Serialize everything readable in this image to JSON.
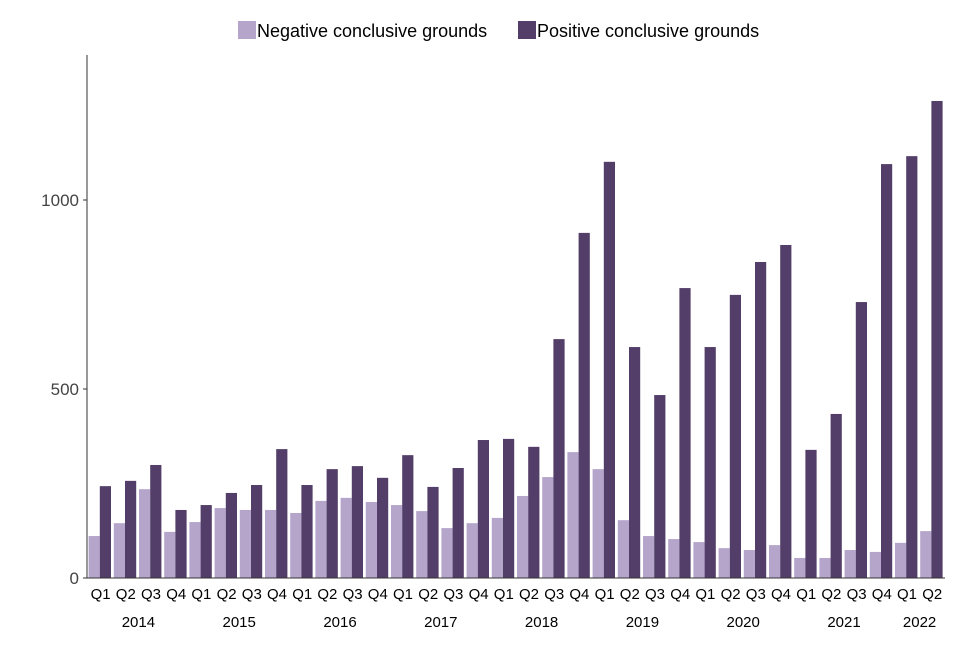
{
  "chart_data": {
    "type": "bar",
    "title": "",
    "xlabel": "",
    "ylabel": "",
    "ylim": [
      0,
      1390
    ],
    "yticks": [
      0,
      500,
      1000
    ],
    "legend_position": "top",
    "grid": false,
    "years": [
      {
        "label": "2014",
        "quarters": 4
      },
      {
        "label": "2015",
        "quarters": 4
      },
      {
        "label": "2016",
        "quarters": 4
      },
      {
        "label": "2017",
        "quarters": 4
      },
      {
        "label": "2018",
        "quarters": 4
      },
      {
        "label": "2019",
        "quarters": 4
      },
      {
        "label": "2020",
        "quarters": 4
      },
      {
        "label": "2021",
        "quarters": 4
      },
      {
        "label": "2022",
        "quarters": 2
      }
    ],
    "categories": [
      "Q1",
      "Q2",
      "Q3",
      "Q4",
      "Q1",
      "Q2",
      "Q3",
      "Q4",
      "Q1",
      "Q2",
      "Q3",
      "Q4",
      "Q1",
      "Q2",
      "Q3",
      "Q4",
      "Q1",
      "Q2",
      "Q3",
      "Q4",
      "Q1",
      "Q2",
      "Q3",
      "Q4",
      "Q1",
      "Q2",
      "Q3",
      "Q4",
      "Q1",
      "Q2",
      "Q3",
      "Q4",
      "Q1",
      "Q2"
    ],
    "series": [
      {
        "name": "Negative conclusive grounds",
        "color": "#b5a5cb",
        "values": [
          111,
          145,
          235,
          122,
          148,
          185,
          180,
          180,
          172,
          204,
          212,
          201,
          193,
          177,
          132,
          145,
          159,
          217,
          267,
          333,
          288,
          153,
          111,
          103,
          95,
          79,
          74,
          87,
          53,
          53,
          74,
          69,
          93,
          124
        ]
      },
      {
        "name": "Positive conclusive grounds",
        "color": "#523e68",
        "values": [
          243,
          257,
          299,
          180,
          193,
          225,
          246,
          341,
          246,
          288,
          296,
          265,
          325,
          241,
          291,
          365,
          368,
          347,
          632,
          913,
          1101,
          611,
          484,
          767,
          611,
          749,
          836,
          881,
          339,
          434,
          730,
          1095,
          1116,
          1262
        ]
      }
    ]
  }
}
